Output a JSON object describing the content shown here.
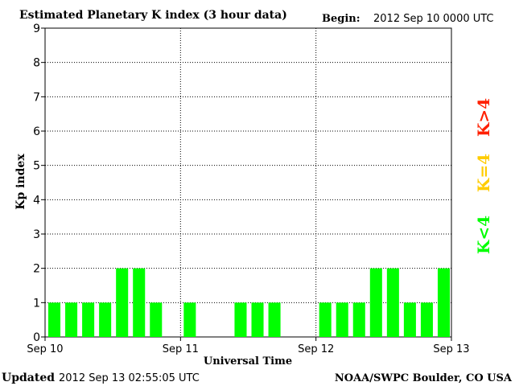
{
  "header": {
    "title": "Estimated Planetary K index (3 hour data)",
    "begin_label": "Begin:",
    "begin_value": "2012 Sep 10 0000 UTC"
  },
  "footer": {
    "updated_label": "Updated",
    "updated_value": "2012 Sep 13 02:55:05 UTC",
    "credit": "NOAA/SWPC Boulder, CO USA"
  },
  "legend": {
    "greater": "K>4",
    "equal": "K=4",
    "less": "K<4"
  },
  "colors": {
    "bar": "#00ff00",
    "k_greater": "#ff2000",
    "k_equal": "#ffcc00",
    "k_less": "#00ff00"
  },
  "chart_data": {
    "type": "bar",
    "xlabel": "Universal Time",
    "ylabel": "Kp index",
    "ylim": [
      0,
      9
    ],
    "yticks": [
      "0",
      "1",
      "2",
      "3",
      "4",
      "5",
      "6",
      "7",
      "8",
      "9"
    ],
    "day_labels": [
      "Sep 10",
      "Sep 11",
      "Sep 12",
      "Sep 13"
    ],
    "grid": true,
    "values": [
      1,
      1,
      1,
      1,
      2,
      2,
      1,
      null,
      1,
      null,
      null,
      1,
      1,
      1,
      null,
      null,
      1,
      1,
      1,
      2,
      2,
      1,
      1,
      2
    ]
  }
}
